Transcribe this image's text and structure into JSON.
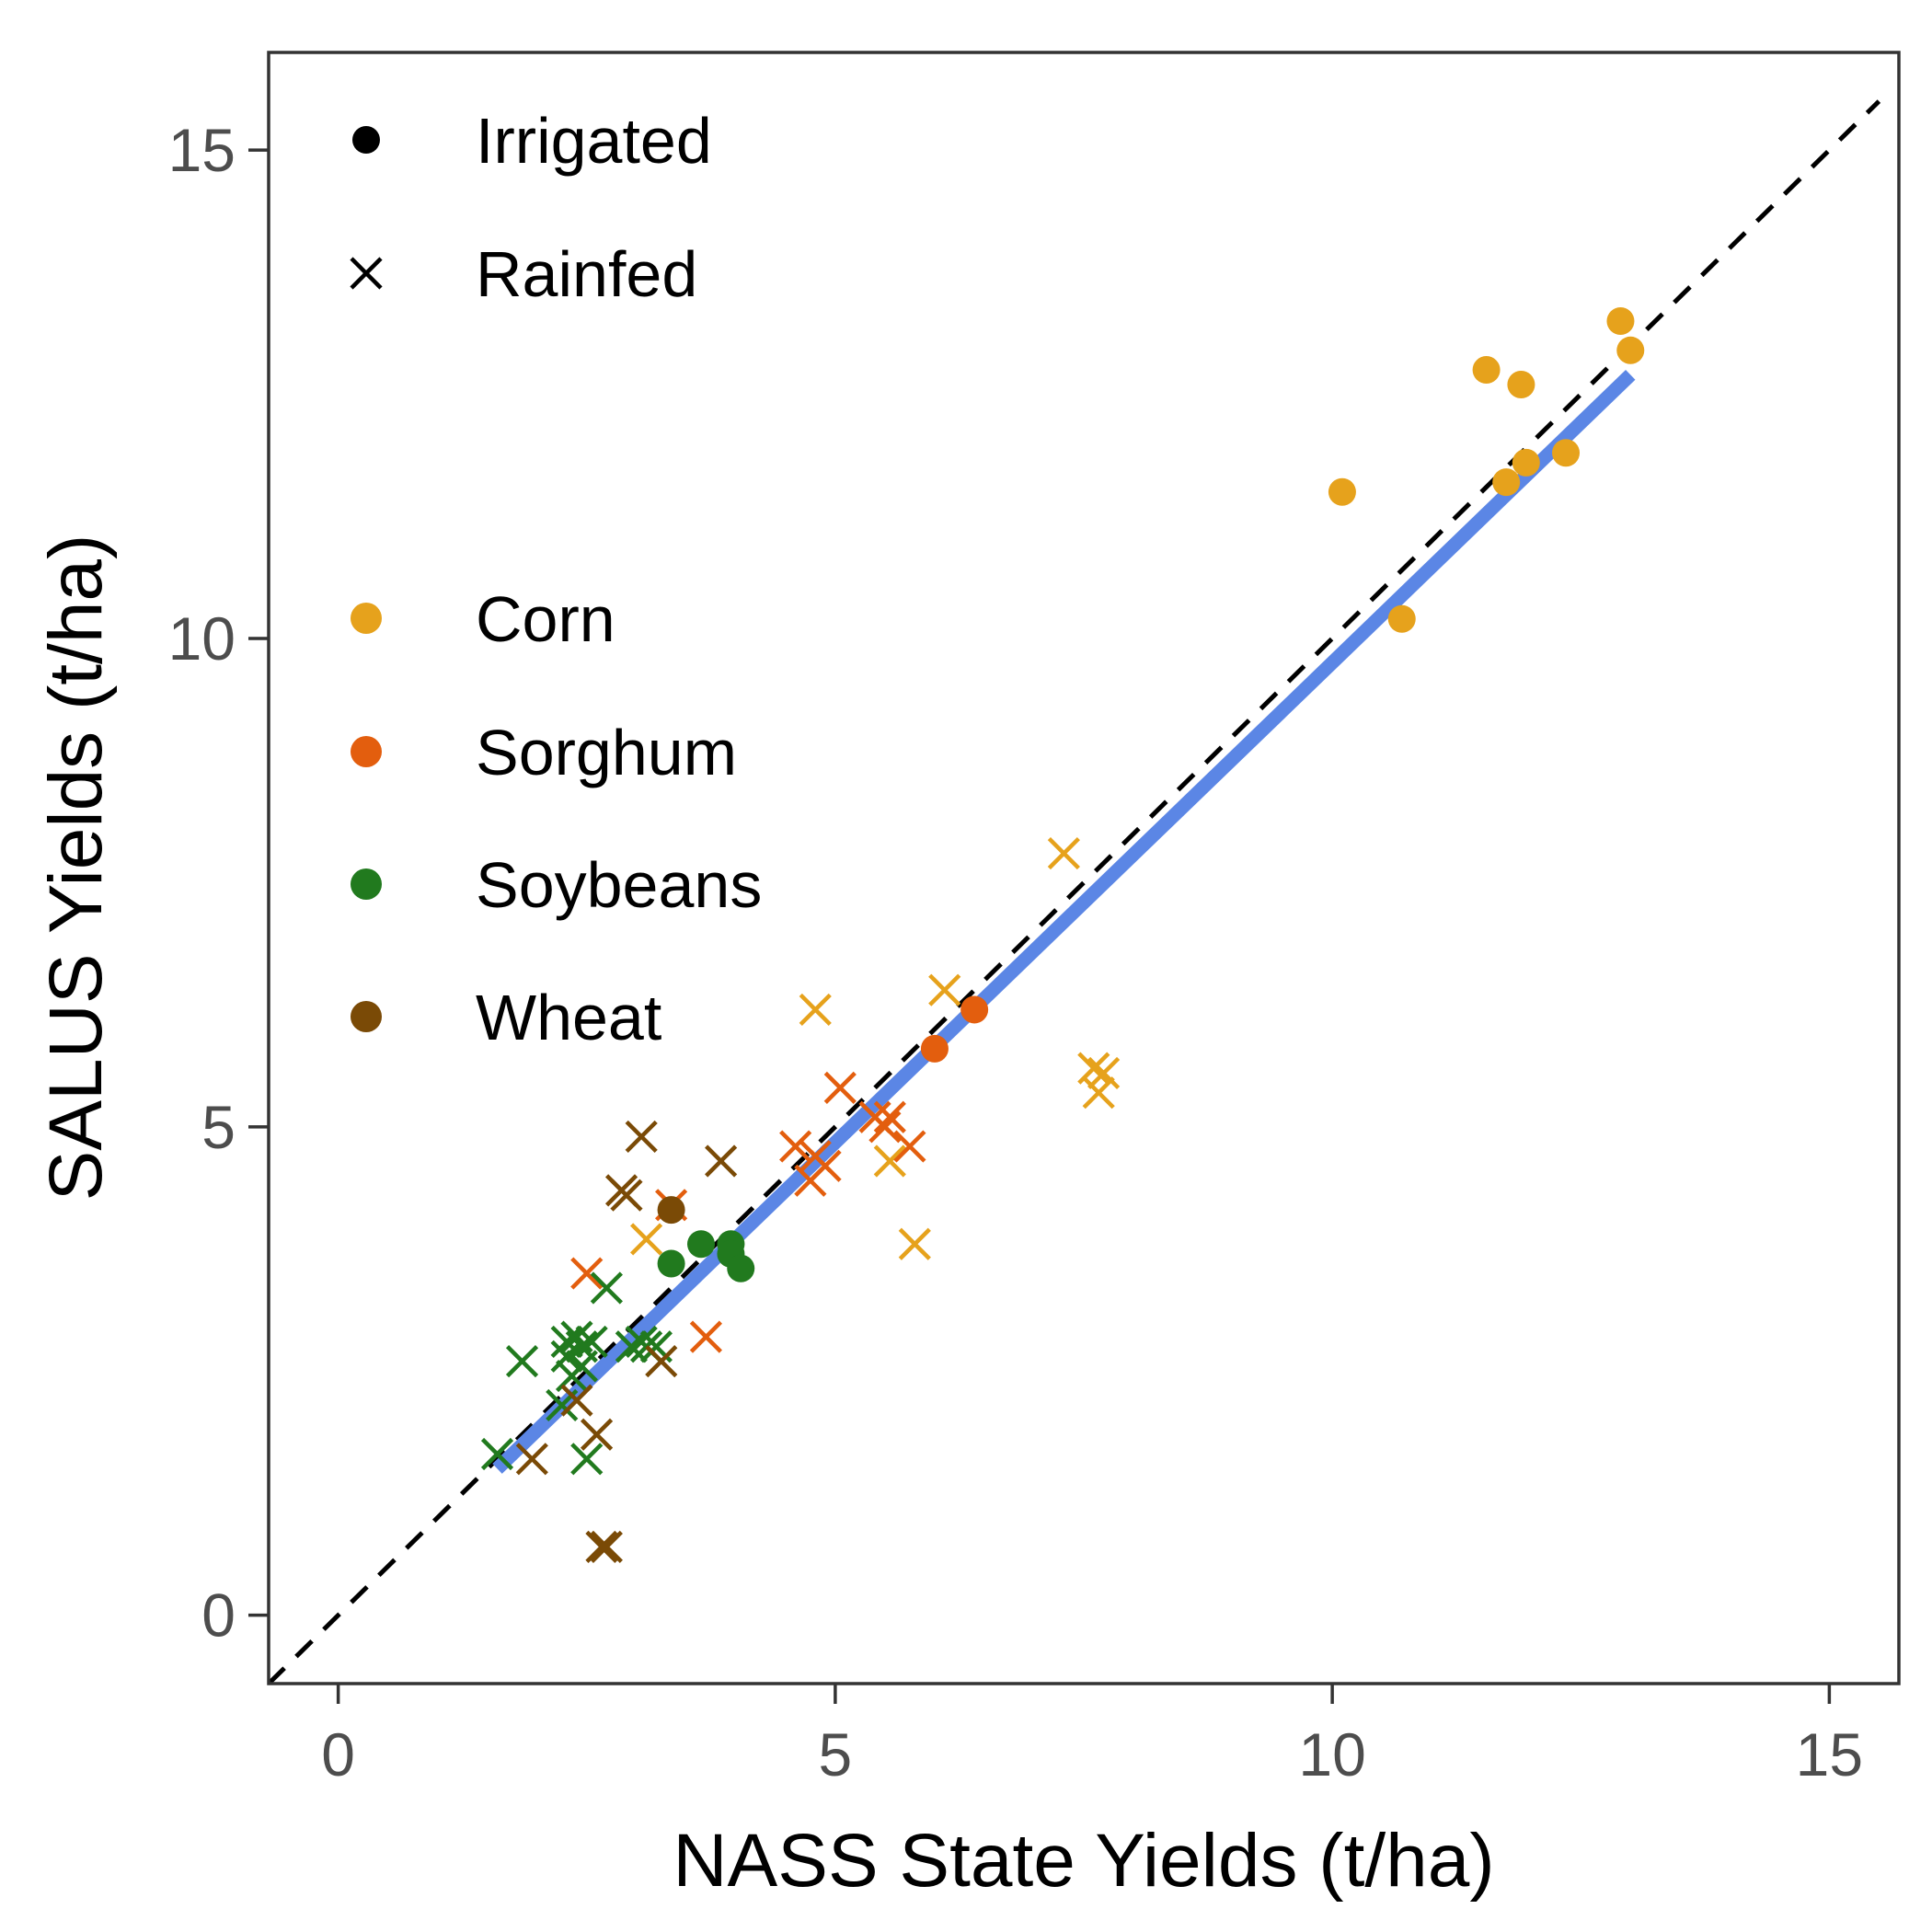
{
  "chart_data": {
    "type": "scatter",
    "title": "",
    "xlabel": "NASS State Yields (t/ha)",
    "ylabel": "SALUS Yields (t/ha)",
    "xlim": [
      -0.7,
      15.7
    ],
    "ylim": [
      -0.7,
      16.0
    ],
    "xticks": [
      "0",
      "5",
      "10",
      "15"
    ],
    "yticks": [
      "0",
      "5",
      "10",
      "15"
    ],
    "xtick_values": [
      0,
      5,
      10,
      15
    ],
    "ytick_values": [
      0,
      5,
      10,
      15
    ],
    "grid": false,
    "legend_placement": "top-left (inside)",
    "colors": {
      "Corn": "#E6A21C",
      "Sorghum": "#E35E0E",
      "Soybeans": "#217A1E",
      "Wheat": "#7A4A06",
      "fit_line": "#5B86E5",
      "identity_line": "#000000"
    },
    "legend_irrigation": [
      {
        "label": "Irrigated",
        "shape": "circle"
      },
      {
        "label": "Rainfed",
        "shape": "x"
      }
    ],
    "legend_crops": [
      {
        "label": "Corn",
        "color": "#E6A21C"
      },
      {
        "label": "Sorghum",
        "color": "#E35E0E"
      },
      {
        "label": "Soybeans",
        "color": "#217A1E"
      },
      {
        "label": "Wheat",
        "color": "#7A4A06"
      }
    ],
    "identity_line": {
      "style": "dashed",
      "from": [
        -0.7,
        -0.7
      ],
      "to": [
        15.5,
        15.5
      ]
    },
    "fit_line": {
      "from": [
        1.6,
        1.5
      ],
      "to": [
        13.0,
        12.7
      ]
    },
    "series": [
      {
        "crop": "Corn",
        "irrigation": "Irrigated",
        "shape": "circle",
        "points": [
          [
            10.1,
            11.5
          ],
          [
            10.7,
            10.2
          ],
          [
            11.55,
            12.75
          ],
          [
            11.9,
            12.6
          ],
          [
            11.75,
            11.6
          ],
          [
            11.95,
            11.8
          ],
          [
            12.35,
            11.9
          ],
          [
            12.9,
            13.25
          ],
          [
            13.0,
            12.95
          ]
        ]
      },
      {
        "crop": "Corn",
        "irrigation": "Rainfed",
        "shape": "x",
        "points": [
          [
            7.3,
            7.8
          ],
          [
            6.1,
            6.4
          ],
          [
            4.8,
            6.2
          ],
          [
            7.6,
            5.6
          ],
          [
            7.7,
            5.55
          ],
          [
            7.65,
            5.35
          ],
          [
            5.55,
            4.65
          ],
          [
            5.8,
            3.8
          ],
          [
            3.1,
            3.85
          ]
        ]
      },
      {
        "crop": "Sorghum",
        "irrigation": "Irrigated",
        "shape": "circle",
        "points": [
          [
            6.4,
            6.2
          ],
          [
            6.0,
            5.8
          ]
        ]
      },
      {
        "crop": "Sorghum",
        "irrigation": "Rainfed",
        "shape": "x",
        "points": [
          [
            5.05,
            5.4
          ],
          [
            5.4,
            5.1
          ],
          [
            5.55,
            5.1
          ],
          [
            5.5,
            5.0
          ],
          [
            5.75,
            4.8
          ],
          [
            4.6,
            4.8
          ],
          [
            4.8,
            4.7
          ],
          [
            4.9,
            4.6
          ],
          [
            4.75,
            4.45
          ],
          [
            3.35,
            4.2
          ],
          [
            2.5,
            3.5
          ],
          [
            3.7,
            2.85
          ]
        ]
      },
      {
        "crop": "Soybeans",
        "irrigation": "Irrigated",
        "shape": "circle",
        "points": [
          [
            3.35,
            3.6
          ],
          [
            3.65,
            3.8
          ],
          [
            3.95,
            3.8
          ],
          [
            3.95,
            3.7
          ],
          [
            4.05,
            3.55
          ]
        ]
      },
      {
        "crop": "Soybeans",
        "irrigation": "Rainfed",
        "shape": "x",
        "points": [
          [
            2.7,
            3.35
          ],
          [
            2.3,
            2.8
          ],
          [
            2.4,
            2.85
          ],
          [
            2.45,
            2.75
          ],
          [
            2.55,
            2.8
          ],
          [
            2.3,
            2.65
          ],
          [
            2.45,
            2.55
          ],
          [
            2.95,
            2.75
          ],
          [
            3.05,
            2.8
          ],
          [
            3.1,
            2.75
          ],
          [
            3.2,
            2.75
          ],
          [
            1.85,
            2.6
          ],
          [
            2.35,
            2.45
          ],
          [
            2.25,
            2.15
          ],
          [
            1.6,
            1.65
          ],
          [
            2.5,
            1.6
          ]
        ]
      },
      {
        "crop": "Wheat",
        "irrigation": "Irrigated",
        "shape": "circle",
        "points": [
          [
            3.35,
            4.15
          ]
        ]
      },
      {
        "crop": "Wheat",
        "irrigation": "Rainfed",
        "shape": "x",
        "points": [
          [
            3.05,
            4.9
          ],
          [
            3.85,
            4.65
          ],
          [
            2.85,
            4.35
          ],
          [
            2.9,
            4.3
          ],
          [
            3.25,
            2.6
          ],
          [
            2.4,
            2.2
          ],
          [
            2.6,
            1.85
          ],
          [
            1.95,
            1.6
          ],
          [
            2.65,
            0.7
          ],
          [
            2.7,
            0.7
          ]
        ]
      }
    ]
  }
}
